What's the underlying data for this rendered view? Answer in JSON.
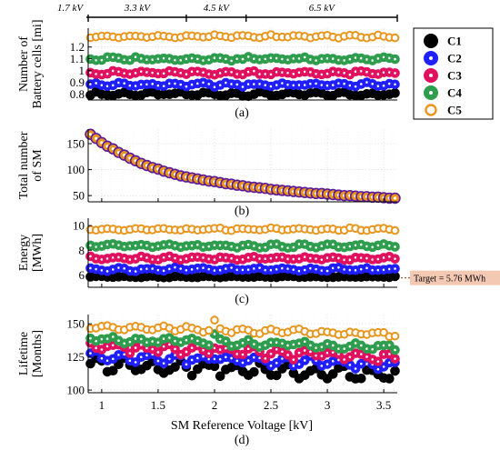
{
  "chart_data": [
    {
      "type": "scatter",
      "panel_label": "(a)",
      "ylabel_lines": [
        "Number of",
        "Battery cells [mi]"
      ],
      "ylim": [
        0.75,
        1.36
      ],
      "yticks": [
        0.8,
        0.9,
        1,
        1.1,
        1.2
      ],
      "ytick_labels": [
        "0.8",
        "0.9",
        "1",
        "1.1",
        "1.2"
      ],
      "xlim": [
        0.88,
        3.62
      ],
      "grid": true,
      "regions": [
        {
          "label": "1.7 kV",
          "x0": 0.88,
          "x1": 0.88
        },
        {
          "label": "3.3 kV",
          "x0": 0.88,
          "x1": 1.75
        },
        {
          "label": "4.5 kV",
          "x0": 1.75,
          "x1": 2.28
        },
        {
          "label": "6.5 kV",
          "x0": 2.28,
          "x1": 3.62
        }
      ],
      "series": [
        {
          "name": "C1",
          "base": 0.8,
          "amp": 0.012,
          "trend": 0,
          "jitter": 0.015
        },
        {
          "name": "C2",
          "base": 0.88,
          "amp": 0.012,
          "trend": 0,
          "jitter": 0.015
        },
        {
          "name": "C3",
          "base": 0.98,
          "amp": 0.012,
          "trend": 0,
          "jitter": 0.015
        },
        {
          "name": "C4",
          "base": 1.1,
          "amp": 0.012,
          "trend": 0,
          "jitter": 0.015
        },
        {
          "name": "C5",
          "base": 1.29,
          "amp": 0.01,
          "trend": 0,
          "jitter": 0.01
        }
      ]
    },
    {
      "type": "scatter",
      "panel_label": "(b)",
      "ylabel_lines": [
        "Total number",
        "of  SM"
      ],
      "ylim": [
        38,
        178
      ],
      "yticks": [
        50,
        100,
        150
      ],
      "ytick_labels": [
        "50",
        "100",
        "150"
      ],
      "xlim": [
        0.88,
        3.62
      ],
      "grid": true,
      "total_sm_x": [
        0.9,
        0.95,
        1.0,
        1.05,
        1.1,
        1.15,
        1.2,
        1.25,
        1.3,
        1.35,
        1.4,
        1.45,
        1.5,
        1.55,
        1.6,
        1.65,
        1.7,
        1.75,
        1.8,
        1.85,
        1.9,
        1.95,
        2.0,
        2.05,
        2.1,
        2.15,
        2.2,
        2.25,
        2.3,
        2.35,
        2.4,
        2.45,
        2.5,
        2.55,
        2.6,
        2.65,
        2.7,
        2.75,
        2.8,
        2.85,
        2.9,
        2.95,
        3.0,
        3.05,
        3.1,
        3.15,
        3.2,
        3.25,
        3.3,
        3.35,
        3.4,
        3.45,
        3.5,
        3.55,
        3.6
      ],
      "total_sm": [
        168,
        160,
        152,
        145,
        140,
        133,
        128,
        122,
        117,
        112,
        108,
        104,
        101,
        97,
        94,
        91,
        88,
        86,
        84,
        82,
        80,
        78,
        77,
        75,
        73,
        72,
        70,
        69,
        67,
        66,
        65,
        64,
        62,
        61,
        60,
        59,
        58,
        57,
        56,
        55,
        54,
        54,
        53,
        52,
        51,
        50,
        50,
        49,
        48,
        48,
        47,
        47,
        46,
        45,
        45
      ]
    },
    {
      "type": "scatter",
      "panel_label": "(c)",
      "ylabel_lines": [
        "Energy",
        "[MWh]"
      ],
      "ylim": [
        5.0,
        10.6
      ],
      "yticks": [
        6,
        8,
        10
      ],
      "ytick_labels": [
        "6",
        "8",
        "10"
      ],
      "xlim": [
        0.88,
        3.62
      ],
      "grid": true,
      "target_value": 5.76,
      "target_label": "Target = 5.76 MWh",
      "series": [
        {
          "name": "C1",
          "base": 5.85,
          "amp": 0.04,
          "trend": 0,
          "jitter": 0.05
        },
        {
          "name": "C2",
          "base": 6.45,
          "amp": 0.1,
          "trend": 0,
          "jitter": 0.12
        },
        {
          "name": "C3",
          "base": 7.35,
          "amp": 0.1,
          "trend": 0,
          "jitter": 0.12
        },
        {
          "name": "C4",
          "base": 8.35,
          "amp": 0.1,
          "trend": 0,
          "jitter": 0.12
        },
        {
          "name": "C5",
          "base": 9.7,
          "amp": 0.08,
          "trend": 0,
          "jitter": 0.1
        }
      ]
    },
    {
      "type": "scatter",
      "panel_label": "(d)",
      "ylabel_lines": [
        "Lifetime",
        "[Months]"
      ],
      "ylim": [
        98,
        157
      ],
      "yticks": [
        100,
        125,
        150
      ],
      "ytick_labels": [
        "100",
        "125",
        "150"
      ],
      "xlim": [
        0.88,
        3.62
      ],
      "grid": true,
      "xlabel": "SM Reference Voltage [kV]",
      "xticks": [
        1,
        1.5,
        2,
        2.5,
        3,
        3.5
      ],
      "xtick_labels": [
        "1",
        "1.5",
        "2",
        "2.5",
        "3",
        "3.5"
      ],
      "series": [
        {
          "name": "C1",
          "base": 119,
          "amp": 4,
          "trend": -8,
          "jitter": 4
        },
        {
          "name": "C2",
          "base": 126,
          "amp": 3,
          "trend": -7,
          "jitter": 3
        },
        {
          "name": "C3",
          "base": 133,
          "amp": 3,
          "trend": -8,
          "jitter": 3
        },
        {
          "name": "C4",
          "base": 139,
          "amp": 2,
          "trend": -7,
          "jitter": 2
        },
        {
          "name": "C5",
          "base": 148,
          "amp": 1.5,
          "trend": -6,
          "jitter": 1.5
        }
      ]
    }
  ],
  "x_samples": [
    0.9,
    0.95,
    1.0,
    1.05,
    1.1,
    1.15,
    1.2,
    1.25,
    1.3,
    1.35,
    1.4,
    1.45,
    1.5,
    1.55,
    1.6,
    1.65,
    1.7,
    1.75,
    1.8,
    1.85,
    1.9,
    1.95,
    2.0,
    2.05,
    2.1,
    2.15,
    2.2,
    2.25,
    2.3,
    2.35,
    2.4,
    2.45,
    2.5,
    2.55,
    2.6,
    2.65,
    2.7,
    2.75,
    2.8,
    2.85,
    2.9,
    2.95,
    3.0,
    3.05,
    3.1,
    3.15,
    3.2,
    3.25,
    3.3,
    3.35,
    3.4,
    3.45,
    3.5,
    3.55,
    3.6
  ],
  "legend": {
    "placement": "right",
    "entries": [
      {
        "name": "C1",
        "fill": "#000000",
        "stroke": "#000000"
      },
      {
        "name": "C2",
        "fill": "#1f1fff",
        "stroke": "#1f1fff"
      },
      {
        "name": "C3",
        "fill": "#e0115f",
        "stroke": "#e0115f"
      },
      {
        "name": "C4",
        "fill": "#2e9e4e",
        "stroke": "#2e9e4e"
      },
      {
        "name": "C5",
        "fill": "#ffffff",
        "stroke": "#e8961e"
      }
    ]
  },
  "colors": {
    "C1": "#000000",
    "C2": "#1f1fff",
    "C3": "#e0115f",
    "C4": "#2e9e4e",
    "C5": "#e8961e",
    "total_sm_fill": "#e8961e",
    "total_sm_stroke": "#5a1a9a",
    "target_line": "#b04020",
    "target_box": "#f4c9b4",
    "grid": "#d8d8d8"
  }
}
